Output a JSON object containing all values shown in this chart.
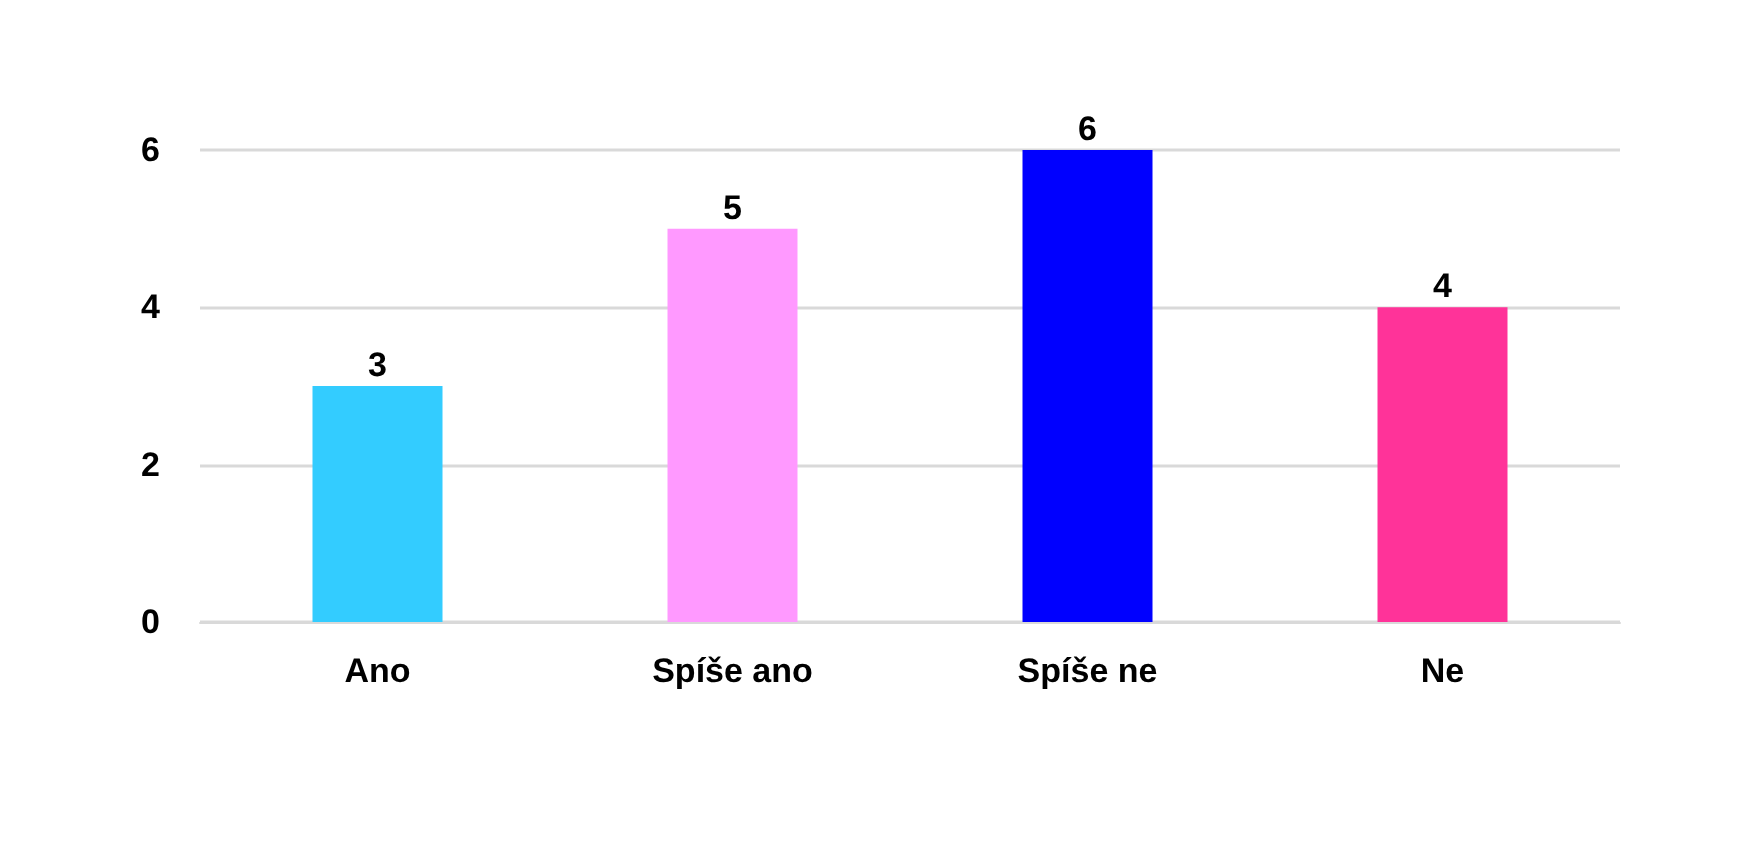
{
  "chart_data": {
    "type": "bar",
    "categories": [
      "Ano",
      "Spíše ano",
      "Spíše ne",
      "Ne"
    ],
    "values": [
      3,
      5,
      6,
      4
    ],
    "colors": [
      "#33ccff",
      "#ff99ff",
      "#0000ff",
      "#ff3399"
    ],
    "ylim": [
      0,
      6
    ],
    "yticks": [
      0,
      2,
      4,
      6
    ],
    "grid": "y",
    "data_labels": true
  }
}
